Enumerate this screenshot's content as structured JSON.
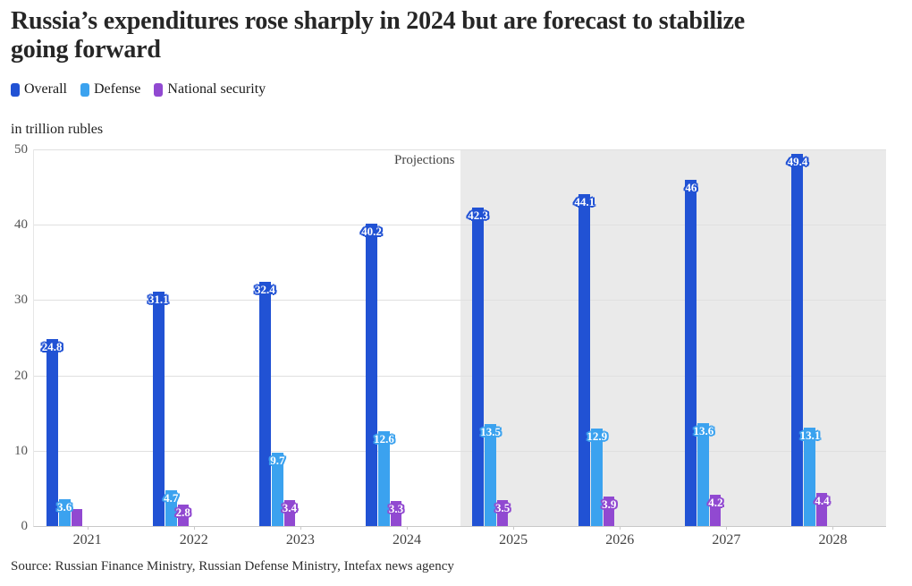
{
  "title_lines": [
    "Russia’s expenditures rose sharply in 2024 but are forecast to stabilize",
    "going forward"
  ],
  "legend": [
    {
      "label": "Overall",
      "color": "#2152d4"
    },
    {
      "label": "Defense",
      "color": "#3ba2ef"
    },
    {
      "label": "National security",
      "color": "#9149d1"
    }
  ],
  "units_label": "in trillion rubles",
  "projections_label": "Projections",
  "source": "Source: Russian Finance Ministry, Russian Defense Ministry, Intefax news agency",
  "chart_data": {
    "type": "bar",
    "title": "Russia’s expenditures rose sharply in 2024 but are forecast to stabilize going forward",
    "ylabel": "in trillion rubles",
    "categories": [
      "2021",
      "2022",
      "2023",
      "2024",
      "2025",
      "2026",
      "2027",
      "2028"
    ],
    "series": [
      {
        "name": "Overall",
        "color": "#2152d4",
        "values": [
          24.8,
          31.1,
          32.4,
          40.2,
          42.3,
          44.1,
          46,
          49.4
        ],
        "labels": [
          "24.8",
          "31.1",
          "32.4",
          "40.2",
          "42.3",
          "44.1",
          "46",
          "49.4"
        ]
      },
      {
        "name": "Defense",
        "color": "#3ba2ef",
        "values": [
          3.6,
          4.7,
          9.7,
          12.6,
          13.5,
          12.9,
          13.6,
          13.1
        ],
        "labels": [
          "3.6",
          "4.7",
          "9.7",
          "12.6",
          "13.5",
          "12.9",
          "13.6",
          "13.1"
        ]
      },
      {
        "name": "National security",
        "color": "#9149d1",
        "values": [
          2.3,
          2.8,
          3.4,
          3.3,
          3.5,
          3.9,
          4.2,
          4.4
        ],
        "labels": [
          "",
          "2.8",
          "3.4",
          "3.3",
          "3.5",
          "3.9",
          "4.2",
          "4.4"
        ]
      }
    ],
    "ylim": [
      0,
      50
    ],
    "yticks": [
      0,
      10,
      20,
      30,
      40,
      50
    ],
    "grid": true,
    "legend_position": "top-left",
    "projection_start_category": "2025"
  }
}
